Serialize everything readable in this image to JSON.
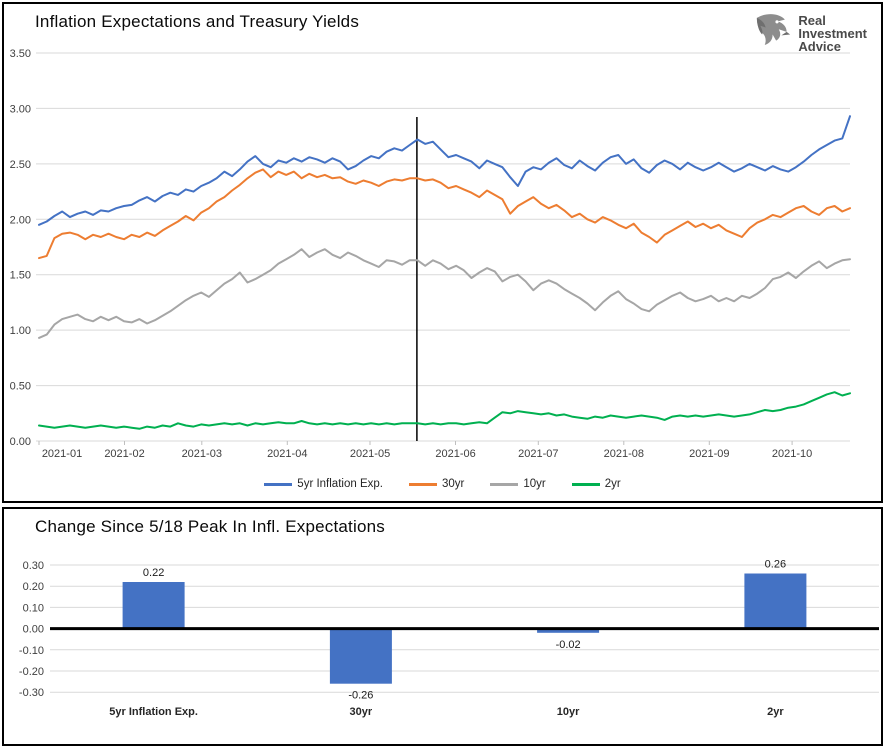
{
  "logo": {
    "lines": [
      "Real",
      "Investment",
      "Advice"
    ]
  },
  "chart_data": [
    {
      "type": "line",
      "title": "Inflation Expectations and Treasury Yields",
      "ylim": [
        0,
        3.5
      ],
      "y_ticks": [
        3.5,
        3.0,
        2.5,
        2.0,
        1.5,
        1.0,
        0.5,
        0.0
      ],
      "y_tick_labels": [
        "3.50",
        "3.00",
        "2.50",
        "2.00",
        "1.50",
        "1.00",
        "0.50",
        "0.00"
      ],
      "x_tick_labels": [
        "2021-01",
        "2021-02",
        "2021-03",
        "2021-04",
        "2021-05",
        "2021-06",
        "2021-07",
        "2021-08",
        "2021-09",
        "2021-10"
      ],
      "month_start_days": [
        0,
        31,
        59,
        90,
        120,
        151,
        181,
        212,
        243,
        273
      ],
      "total_days": 294,
      "vline_day": 137,
      "grid": true,
      "legend_position": "bottom",
      "gridline_color": "#D9D9D9",
      "series": [
        {
          "name": "5yr Inflation Exp.",
          "color": "#4472C4",
          "values": [
            1.95,
            1.98,
            2.03,
            2.07,
            2.02,
            2.05,
            2.07,
            2.04,
            2.08,
            2.07,
            2.1,
            2.12,
            2.13,
            2.17,
            2.2,
            2.16,
            2.21,
            2.24,
            2.22,
            2.27,
            2.25,
            2.3,
            2.33,
            2.37,
            2.43,
            2.39,
            2.45,
            2.52,
            2.57,
            2.5,
            2.47,
            2.53,
            2.51,
            2.55,
            2.52,
            2.56,
            2.54,
            2.51,
            2.55,
            2.52,
            2.45,
            2.48,
            2.53,
            2.57,
            2.55,
            2.61,
            2.64,
            2.62,
            2.67,
            2.72,
            2.68,
            2.7,
            2.63,
            2.56,
            2.58,
            2.55,
            2.52,
            2.46,
            2.53,
            2.5,
            2.47,
            2.38,
            2.3,
            2.43,
            2.47,
            2.45,
            2.51,
            2.55,
            2.49,
            2.46,
            2.53,
            2.48,
            2.44,
            2.51,
            2.56,
            2.58,
            2.5,
            2.54,
            2.46,
            2.42,
            2.49,
            2.53,
            2.5,
            2.45,
            2.51,
            2.47,
            2.44,
            2.47,
            2.51,
            2.47,
            2.43,
            2.46,
            2.5,
            2.47,
            2.44,
            2.48,
            2.45,
            2.43,
            2.47,
            2.52,
            2.58,
            2.63,
            2.67,
            2.71,
            2.73,
            2.93
          ]
        },
        {
          "name": "30yr",
          "color": "#ED7D31",
          "values": [
            1.65,
            1.67,
            1.83,
            1.87,
            1.88,
            1.86,
            1.82,
            1.86,
            1.84,
            1.87,
            1.84,
            1.82,
            1.86,
            1.84,
            1.88,
            1.85,
            1.9,
            1.94,
            1.98,
            2.03,
            1.99,
            2.06,
            2.1,
            2.16,
            2.2,
            2.26,
            2.31,
            2.37,
            2.42,
            2.45,
            2.38,
            2.43,
            2.4,
            2.43,
            2.37,
            2.41,
            2.38,
            2.4,
            2.37,
            2.38,
            2.34,
            2.32,
            2.35,
            2.33,
            2.3,
            2.34,
            2.36,
            2.35,
            2.37,
            2.37,
            2.35,
            2.36,
            2.33,
            2.28,
            2.3,
            2.27,
            2.24,
            2.2,
            2.26,
            2.22,
            2.18,
            2.05,
            2.12,
            2.16,
            2.2,
            2.14,
            2.1,
            2.13,
            2.08,
            2.02,
            2.05,
            2.0,
            1.97,
            2.02,
            1.99,
            1.95,
            1.92,
            1.96,
            1.88,
            1.84,
            1.79,
            1.86,
            1.9,
            1.94,
            1.98,
            1.93,
            1.96,
            1.92,
            1.95,
            1.9,
            1.87,
            1.84,
            1.92,
            1.97,
            2.0,
            2.04,
            2.02,
            2.06,
            2.1,
            2.12,
            2.07,
            2.04,
            2.1,
            2.12,
            2.07,
            2.1
          ]
        },
        {
          "name": "10yr",
          "color": "#A6A6A6",
          "values": [
            0.93,
            0.96,
            1.05,
            1.1,
            1.12,
            1.14,
            1.1,
            1.08,
            1.12,
            1.09,
            1.12,
            1.08,
            1.07,
            1.1,
            1.06,
            1.09,
            1.13,
            1.17,
            1.22,
            1.27,
            1.31,
            1.34,
            1.3,
            1.36,
            1.42,
            1.46,
            1.52,
            1.43,
            1.46,
            1.5,
            1.54,
            1.6,
            1.64,
            1.68,
            1.73,
            1.66,
            1.7,
            1.73,
            1.68,
            1.65,
            1.7,
            1.67,
            1.63,
            1.6,
            1.57,
            1.63,
            1.62,
            1.59,
            1.63,
            1.63,
            1.58,
            1.63,
            1.6,
            1.55,
            1.58,
            1.54,
            1.47,
            1.52,
            1.56,
            1.53,
            1.44,
            1.48,
            1.5,
            1.44,
            1.36,
            1.42,
            1.45,
            1.42,
            1.37,
            1.33,
            1.29,
            1.24,
            1.18,
            1.25,
            1.31,
            1.35,
            1.28,
            1.24,
            1.19,
            1.17,
            1.23,
            1.27,
            1.31,
            1.34,
            1.29,
            1.26,
            1.28,
            1.31,
            1.26,
            1.29,
            1.26,
            1.31,
            1.29,
            1.33,
            1.38,
            1.46,
            1.48,
            1.52,
            1.47,
            1.53,
            1.58,
            1.62,
            1.56,
            1.6,
            1.63,
            1.64
          ]
        },
        {
          "name": "2yr",
          "color": "#00B050",
          "values": [
            0.14,
            0.13,
            0.12,
            0.13,
            0.14,
            0.13,
            0.12,
            0.13,
            0.14,
            0.13,
            0.12,
            0.13,
            0.12,
            0.11,
            0.13,
            0.12,
            0.14,
            0.13,
            0.16,
            0.14,
            0.13,
            0.15,
            0.14,
            0.15,
            0.16,
            0.15,
            0.16,
            0.14,
            0.16,
            0.15,
            0.16,
            0.17,
            0.16,
            0.16,
            0.18,
            0.16,
            0.15,
            0.16,
            0.15,
            0.16,
            0.15,
            0.16,
            0.15,
            0.16,
            0.15,
            0.16,
            0.15,
            0.16,
            0.16,
            0.16,
            0.15,
            0.16,
            0.15,
            0.16,
            0.16,
            0.15,
            0.16,
            0.17,
            0.16,
            0.21,
            0.26,
            0.25,
            0.27,
            0.26,
            0.25,
            0.24,
            0.25,
            0.23,
            0.24,
            0.22,
            0.21,
            0.2,
            0.22,
            0.21,
            0.23,
            0.22,
            0.21,
            0.22,
            0.23,
            0.22,
            0.21,
            0.19,
            0.22,
            0.23,
            0.22,
            0.23,
            0.22,
            0.23,
            0.24,
            0.23,
            0.22,
            0.23,
            0.24,
            0.26,
            0.28,
            0.27,
            0.28,
            0.3,
            0.31,
            0.33,
            0.36,
            0.39,
            0.42,
            0.44,
            0.41,
            0.43
          ]
        }
      ]
    },
    {
      "type": "bar",
      "title": "Change Since 5/18 Peak In Infl. Expectations",
      "categories": [
        "5yr Inflation Exp.",
        "30yr",
        "10yr",
        "2yr"
      ],
      "values": [
        0.22,
        -0.26,
        -0.02,
        0.26
      ],
      "data_labels": [
        "0.22",
        "-0.26",
        "-0.02",
        "0.26"
      ],
      "bar_color": "#4472C4",
      "ylim": [
        -0.35,
        0.35
      ],
      "y_ticks": [
        0.3,
        0.2,
        0.1,
        0.0,
        -0.1,
        -0.2,
        -0.3
      ],
      "y_tick_labels": [
        "0.30",
        "0.20",
        "0.10",
        "0.00",
        "-0.10",
        "-0.20",
        "-0.30"
      ],
      "gridline_color": "#D9D9D9",
      "zero_line_color": "#000000"
    }
  ]
}
